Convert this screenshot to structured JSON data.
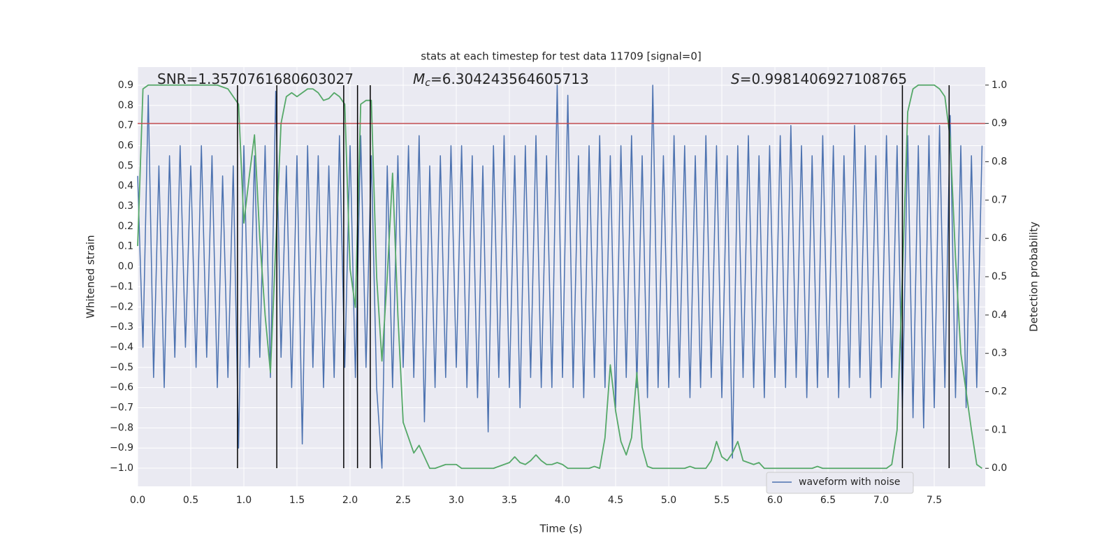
{
  "chart_data": {
    "type": "line",
    "title": "stats at each timestep for test data 11709 [signal=0]",
    "xlabel": "Time (s)",
    "ylabel": "Whitened strain",
    "y2label": "Detection probability",
    "annotations": [
      {
        "text": "SNR=1.3570761680603027"
      },
      {
        "symbol": "M",
        "subscript": "c",
        "text": "=6.304243564605713"
      },
      {
        "symbol": "S",
        "text": "=0.9981406927108765"
      }
    ],
    "xlim": [
      0,
      7.98
    ],
    "ylim": [
      -1.09,
      0.99
    ],
    "y2lim": [
      -0.047,
      1.047
    ],
    "xticks": [
      {
        "value": 0,
        "label": "0.0"
      },
      0.5,
      {
        "value": 1,
        "label": "1.0"
      },
      1.5,
      {
        "value": 2,
        "label": "2.0"
      },
      2.5,
      {
        "value": 3,
        "label": "3.0"
      },
      3.5,
      {
        "value": 4,
        "label": "4.0"
      },
      4.5,
      {
        "value": 5,
        "label": "5.0"
      },
      5.5,
      {
        "value": 6,
        "label": "6.0"
      },
      6.5,
      {
        "value": 7,
        "label": "7.0"
      },
      7.5
    ],
    "yticks": [
      {
        "value": -1,
        "label": "−1.0"
      },
      {
        "value": -0.9,
        "label": "−0.9"
      },
      {
        "value": -0.8,
        "label": "−0.8"
      },
      {
        "value": -0.7,
        "label": "−0.7"
      },
      {
        "value": -0.6,
        "label": "−0.6"
      },
      {
        "value": -0.5,
        "label": "−0.5"
      },
      {
        "value": -0.4,
        "label": "−0.4"
      },
      {
        "value": -0.3,
        "label": "−0.3"
      },
      {
        "value": -0.2,
        "label": "−0.2"
      },
      {
        "value": -0.1,
        "label": "−0.1"
      },
      {
        "value": 0,
        "label": "0.0"
      },
      0.1,
      0.2,
      0.3,
      0.4,
      0.5,
      0.6,
      0.7,
      0.8,
      0.9
    ],
    "y2ticks": [
      {
        "value": 0,
        "label": "0.0"
      },
      0.1,
      0.2,
      0.3,
      0.4,
      0.5,
      0.6,
      0.7,
      0.8,
      0.9,
      {
        "value": 1,
        "label": "1.0"
      }
    ],
    "grid": true,
    "legend": "lower right",
    "x": [
      0,
      0.05,
      0.1,
      0.15,
      0.2,
      0.25,
      0.3,
      0.35,
      0.4,
      0.45,
      0.5,
      0.55,
      0.6,
      0.65,
      0.7,
      0.75,
      0.8,
      0.85,
      0.9,
      0.95,
      1,
      1.05,
      1.1,
      1.15,
      1.2,
      1.25,
      1.3,
      1.35,
      1.4,
      1.45,
      1.5,
      1.55,
      1.6,
      1.65,
      1.7,
      1.75,
      1.8,
      1.85,
      1.9,
      1.95,
      2,
      2.05,
      2.1,
      2.15,
      2.2,
      2.25,
      2.3,
      2.35,
      2.4,
      2.45,
      2.5,
      2.55,
      2.6,
      2.65,
      2.7,
      2.75,
      2.8,
      2.85,
      2.9,
      2.95,
      3,
      3.05,
      3.1,
      3.15,
      3.2,
      3.25,
      3.3,
      3.35,
      3.4,
      3.45,
      3.5,
      3.55,
      3.6,
      3.65,
      3.7,
      3.75,
      3.8,
      3.85,
      3.9,
      3.95,
      4,
      4.05,
      4.1,
      4.15,
      4.2,
      4.25,
      4.3,
      4.35,
      4.4,
      4.45,
      4.5,
      4.55,
      4.6,
      4.65,
      4.7,
      4.75,
      4.8,
      4.85,
      4.9,
      4.95,
      5,
      5.05,
      5.1,
      5.15,
      5.2,
      5.25,
      5.3,
      5.35,
      5.4,
      5.45,
      5.5,
      5.55,
      5.6,
      5.65,
      5.7,
      5.75,
      5.8,
      5.85,
      5.9,
      5.95,
      6,
      6.05,
      6.1,
      6.15,
      6.2,
      6.25,
      6.3,
      6.35,
      6.4,
      6.45,
      6.5,
      6.55,
      6.6,
      6.65,
      6.7,
      6.75,
      6.8,
      6.85,
      6.9,
      6.95,
      7,
      7.05,
      7.1,
      7.15,
      7.2,
      7.25,
      7.3,
      7.35,
      7.4,
      7.45,
      7.5,
      7.55,
      7.6,
      7.65,
      7.7,
      7.75,
      7.8,
      7.85,
      7.9,
      7.95
    ],
    "series": [
      {
        "name": "waveform with noise",
        "color": "#4c72b0",
        "values": [
          0.45,
          -0.4,
          0.85,
          -0.55,
          0.5,
          -0.6,
          0.55,
          -0.45,
          0.6,
          -0.4,
          0.5,
          -0.5,
          0.6,
          -0.45,
          0.55,
          -0.6,
          0.45,
          -0.55,
          0.5,
          -0.9,
          0.6,
          -0.5,
          0.55,
          -0.45,
          0.6,
          -0.55,
          0.87,
          -0.45,
          0.5,
          -0.6,
          0.55,
          -0.88,
          0.6,
          -0.5,
          0.55,
          -0.6,
          0.5,
          -0.55,
          0.65,
          -0.5,
          0.6,
          -0.55,
          0.65,
          -0.5,
          0.55,
          -0.6,
          -1.0,
          0.5,
          -0.6,
          0.55,
          -0.5,
          0.6,
          -0.55,
          0.65,
          -0.77,
          0.5,
          -0.6,
          0.55,
          -0.55,
          0.6,
          -0.5,
          0.6,
          -0.6,
          0.55,
          -0.65,
          0.5,
          -0.82,
          0.6,
          -0.55,
          0.65,
          -0.6,
          0.55,
          -0.7,
          0.6,
          -0.55,
          0.65,
          -0.6,
          0.55,
          -0.6,
          0.9,
          -0.55,
          0.85,
          -0.6,
          0.55,
          -0.65,
          0.6,
          -0.55,
          0.65,
          -0.6,
          0.55,
          -0.7,
          0.6,
          -0.55,
          0.65,
          -0.6,
          0.55,
          -0.65,
          0.9,
          -0.6,
          0.55,
          -0.6,
          0.65,
          -0.55,
          0.6,
          -0.65,
          0.55,
          -0.6,
          0.65,
          -0.55,
          0.6,
          -0.65,
          0.55,
          -0.95,
          0.6,
          -0.55,
          0.65,
          -0.6,
          0.55,
          -0.65,
          0.6,
          -0.55,
          0.65,
          -0.6,
          0.7,
          -0.55,
          0.6,
          -0.65,
          0.55,
          -0.6,
          0.65,
          -0.55,
          0.6,
          -0.65,
          0.55,
          -0.6,
          0.7,
          -0.55,
          0.6,
          -0.65,
          0.55,
          -0.6,
          0.65,
          -0.55,
          0.6,
          -0.7,
          0.65,
          -0.75,
          0.6,
          -0.8,
          0.65,
          -0.7,
          0.7,
          -0.6,
          0.75,
          -0.65,
          0.6,
          -0.7,
          0.55,
          -0.6,
          0.6
        ]
      },
      {
        "color": "#55a868",
        "axis": "y2",
        "values": [
          0.58,
          0.99,
          1.0,
          1.0,
          1.0,
          1.0,
          1.0,
          1.0,
          1.0,
          1.0,
          1.0,
          1.0,
          1.0,
          1.0,
          1.0,
          1.0,
          0.995,
          0.99,
          0.97,
          0.95,
          0.64,
          0.76,
          0.87,
          0.6,
          0.4,
          0.25,
          0.58,
          0.9,
          0.97,
          0.98,
          0.97,
          0.98,
          0.99,
          0.99,
          0.98,
          0.96,
          0.965,
          0.98,
          0.97,
          0.95,
          0.52,
          0.42,
          0.95,
          0.96,
          0.96,
          0.5,
          0.28,
          0.5,
          0.77,
          0.4,
          0.12,
          0.08,
          0.04,
          0.06,
          0.03,
          0.0,
          0.0,
          0.005,
          0.01,
          0.01,
          0.01,
          0.0,
          0.0,
          0.0,
          0.0,
          0.0,
          0.0,
          0.0,
          0.005,
          0.01,
          0.015,
          0.03,
          0.015,
          0.01,
          0.02,
          0.035,
          0.02,
          0.01,
          0.01,
          0.015,
          0.01,
          0.0,
          0.0,
          0.0,
          0.0,
          0.0,
          0.005,
          0.0,
          0.08,
          0.27,
          0.15,
          0.07,
          0.035,
          0.08,
          0.25,
          0.055,
          0.005,
          0.0,
          0.0,
          0.0,
          0.0,
          0.0,
          0.0,
          0.0,
          0.005,
          0.0,
          0.0,
          0.0,
          0.02,
          0.07,
          0.03,
          0.02,
          0.04,
          0.07,
          0.02,
          0.015,
          0.01,
          0.015,
          0.0,
          0.0,
          0.0,
          0.0,
          0.0,
          0.0,
          0.0,
          0.0,
          0.0,
          0.0,
          0.005,
          0.0,
          0.0,
          0.0,
          0.0,
          0.0,
          0.0,
          0.0,
          0.0,
          0.0,
          0.0,
          0.0,
          0.0,
          0.0,
          0.01,
          0.1,
          0.5,
          0.93,
          0.99,
          1.0,
          1.0,
          1.0,
          1.0,
          0.99,
          0.97,
          0.86,
          0.55,
          0.3,
          0.2,
          0.1,
          0.01,
          0.0
        ]
      }
    ],
    "threshold": 0.9,
    "threshold_color": "#c44e52",
    "vlines": [
      0.94,
      1.31,
      1.94,
      2.07,
      2.19,
      7.2,
      7.64
    ],
    "vline_ylim": [
      -1.0,
      0.9
    ],
    "vline_color": "#000000"
  }
}
